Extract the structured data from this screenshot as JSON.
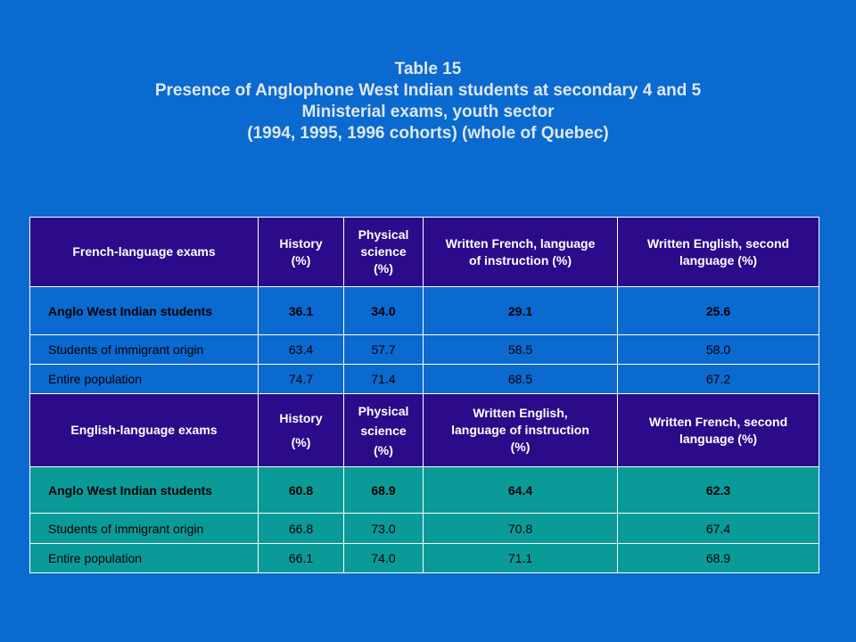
{
  "title": {
    "line1": "Table 15",
    "line2": "Presence of Anglophone West Indian students at secondary 4 and 5",
    "line3": "Ministerial exams, youth sector",
    "line4": "(1994, 1995, 1996 cohorts) (whole of Quebec)"
  },
  "french_section": {
    "headers": [
      "French-language exams",
      "History (%)",
      "Physical science (%)",
      "Written French, language of instruction (%)",
      "Written English, second language (%)"
    ],
    "rows": [
      {
        "label": "Anglo West Indian students",
        "values": [
          "36.1",
          "34.0",
          "29.1",
          "25.6"
        ]
      },
      {
        "label": "Students of immigrant origin",
        "values": [
          "63.4",
          "57.7",
          "58.5",
          "58.0"
        ]
      },
      {
        "label": "Entire population",
        "values": [
          "74.7",
          "71.4",
          "68.5",
          "67.2"
        ]
      }
    ]
  },
  "english_section": {
    "headers": [
      "English-language exams",
      "History (%)",
      "Physical science (%)",
      "Written English, language of instruction (%)",
      "Written French, second language (%)"
    ],
    "rows": [
      {
        "label": "Anglo West Indian students",
        "values": [
          "60.8",
          "68.9",
          "64.4",
          "62.3"
        ]
      },
      {
        "label": "Students of immigrant origin",
        "values": [
          "66.8",
          "73.0",
          "70.8",
          "67.4"
        ]
      },
      {
        "label": "Entire population",
        "values": [
          "66.1",
          "74.0",
          "71.1",
          "68.9"
        ]
      }
    ]
  },
  "colors": {
    "background": "#0a6ad0",
    "header": "#2b0b8a",
    "french_rows": "#0a6ad0",
    "english_rows": "#0a9b98"
  }
}
